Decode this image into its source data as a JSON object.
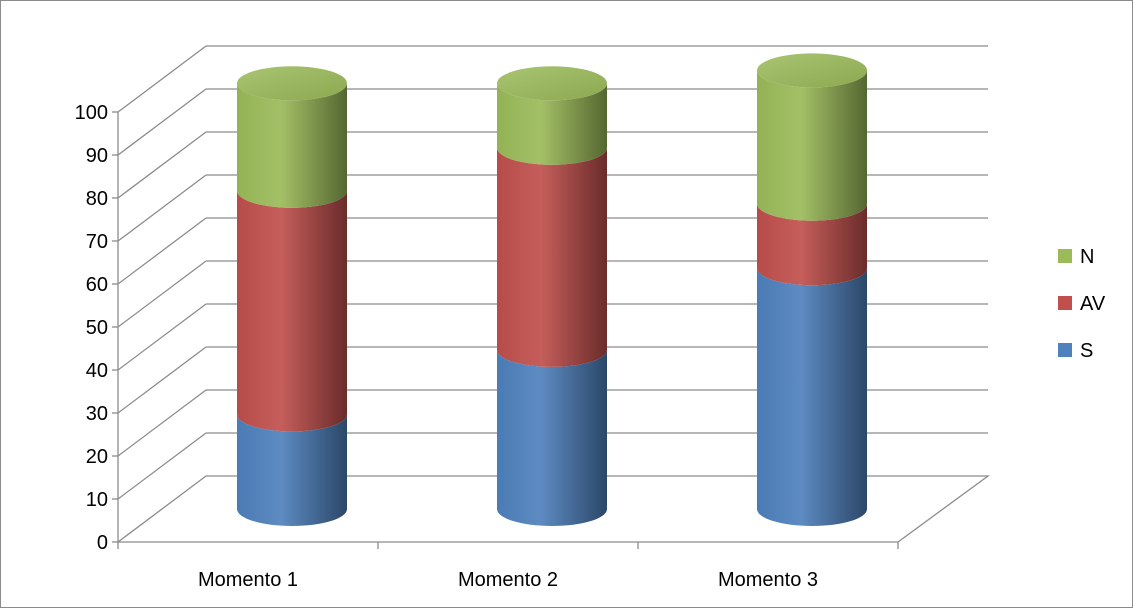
{
  "chart_data": {
    "type": "bar",
    "stacked": true,
    "style": "3d-cylinder",
    "categories": [
      "Momento 1",
      "Momento 2",
      "Momento 3"
    ],
    "series": [
      {
        "name": "S",
        "values": [
          22,
          37,
          56
        ],
        "color": "#4f81bd"
      },
      {
        "name": "AV",
        "values": [
          52,
          47,
          15
        ],
        "color": "#c0504d"
      },
      {
        "name": "N",
        "values": [
          25,
          15,
          31
        ],
        "color": "#9bbb59"
      }
    ],
    "ylim": [
      0,
      100
    ],
    "yticks": [
      0,
      10,
      20,
      30,
      40,
      50,
      60,
      70,
      80,
      90,
      100
    ],
    "grid": true,
    "legend": "right",
    "title": "",
    "xlabel": "",
    "ylabel": ""
  }
}
